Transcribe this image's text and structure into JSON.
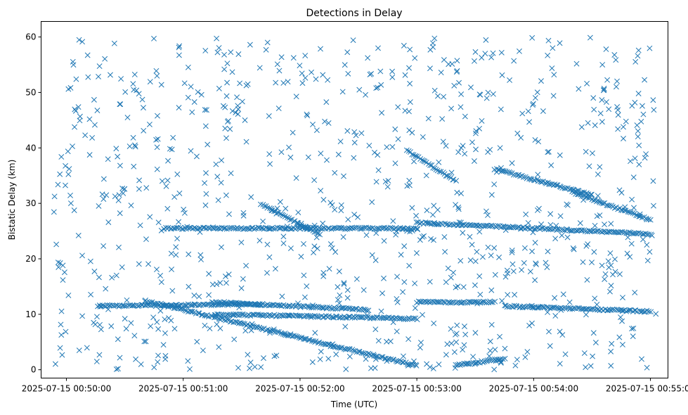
{
  "chart_data": {
    "type": "scatter",
    "title": "Detections in Delay",
    "xlabel": "Time (UTC)",
    "ylabel": "Bistatic Delay (km)",
    "x_tick_labels": [
      "2025-07-15 00:50:00",
      "2025-07-15 00:51:00",
      "2025-07-15 00:52:00",
      "2025-07-15 00:53:00",
      "2025-07-15 00:54:00",
      "2025-07-15 00:55:00"
    ],
    "y_tick_labels": [
      "0",
      "10",
      "20",
      "30",
      "40",
      "50",
      "60"
    ],
    "xlim": [
      "2025-07-15 00:49:47",
      "2025-07-15 00:55:09"
    ],
    "ylim": [
      -1.5,
      62.8
    ],
    "y_ticks": [
      0,
      10,
      20,
      30,
      40,
      50,
      60
    ],
    "marker": "x",
    "grid": false,
    "legend": "none",
    "series_color": "#1f77b4",
    "tracks": [
      {
        "x": [
          "2025-07-15 00:50:16",
          "2025-07-15 00:51:40"
        ],
        "y": [
          11.5,
          11.8
        ]
      },
      {
        "x": [
          "2025-07-15 00:51:16",
          "2025-07-15 00:53:00"
        ],
        "y": [
          10.0,
          9.2
        ]
      },
      {
        "x": [
          "2025-07-15 00:50:40",
          "2025-07-15 00:53:00"
        ],
        "y": [
          12.5,
          0.7
        ]
      },
      {
        "x": [
          "2025-07-15 00:51:15",
          "2025-07-15 00:52:35"
        ],
        "y": [
          12.2,
          10.8
        ]
      },
      {
        "x": [
          "2025-07-15 00:53:00",
          "2025-07-15 00:53:40"
        ],
        "y": [
          12.2,
          12.2
        ]
      },
      {
        "x": [
          "2025-07-15 00:51:40",
          "2025-07-15 00:52:10"
        ],
        "y": [
          29.8,
          24.5
        ]
      },
      {
        "x": [
          "2025-07-15 00:52:55",
          "2025-07-15 00:53:20"
        ],
        "y": [
          39.5,
          34.0
        ]
      },
      {
        "x": [
          "2025-07-15 00:53:40",
          "2025-07-15 00:54:30"
        ],
        "y": [
          36.2,
          31.5
        ]
      },
      {
        "x": [
          "2025-07-15 00:54:20",
          "2025-07-15 00:55:00"
        ],
        "y": [
          32.0,
          27.0
        ]
      },
      {
        "x": [
          "2025-07-15 00:50:50",
          "2025-07-15 00:53:00"
        ],
        "y": [
          25.5,
          25.5
        ]
      },
      {
        "x": [
          "2025-07-15 00:53:00",
          "2025-07-15 00:55:00"
        ],
        "y": [
          26.5,
          24.5
        ]
      },
      {
        "x": [
          "2025-07-15 00:53:20",
          "2025-07-15 00:53:45"
        ],
        "y": [
          0.8,
          2.0
        ]
      },
      {
        "x": [
          "2025-07-15 00:53:45",
          "2025-07-15 00:55:00"
        ],
        "y": [
          11.5,
          10.5
        ]
      }
    ],
    "background_points": {
      "count": 900,
      "x_range": [
        "2025-07-15 00:49:53",
        "2025-07-15 00:55:03"
      ],
      "y_range": [
        0,
        60
      ]
    }
  }
}
